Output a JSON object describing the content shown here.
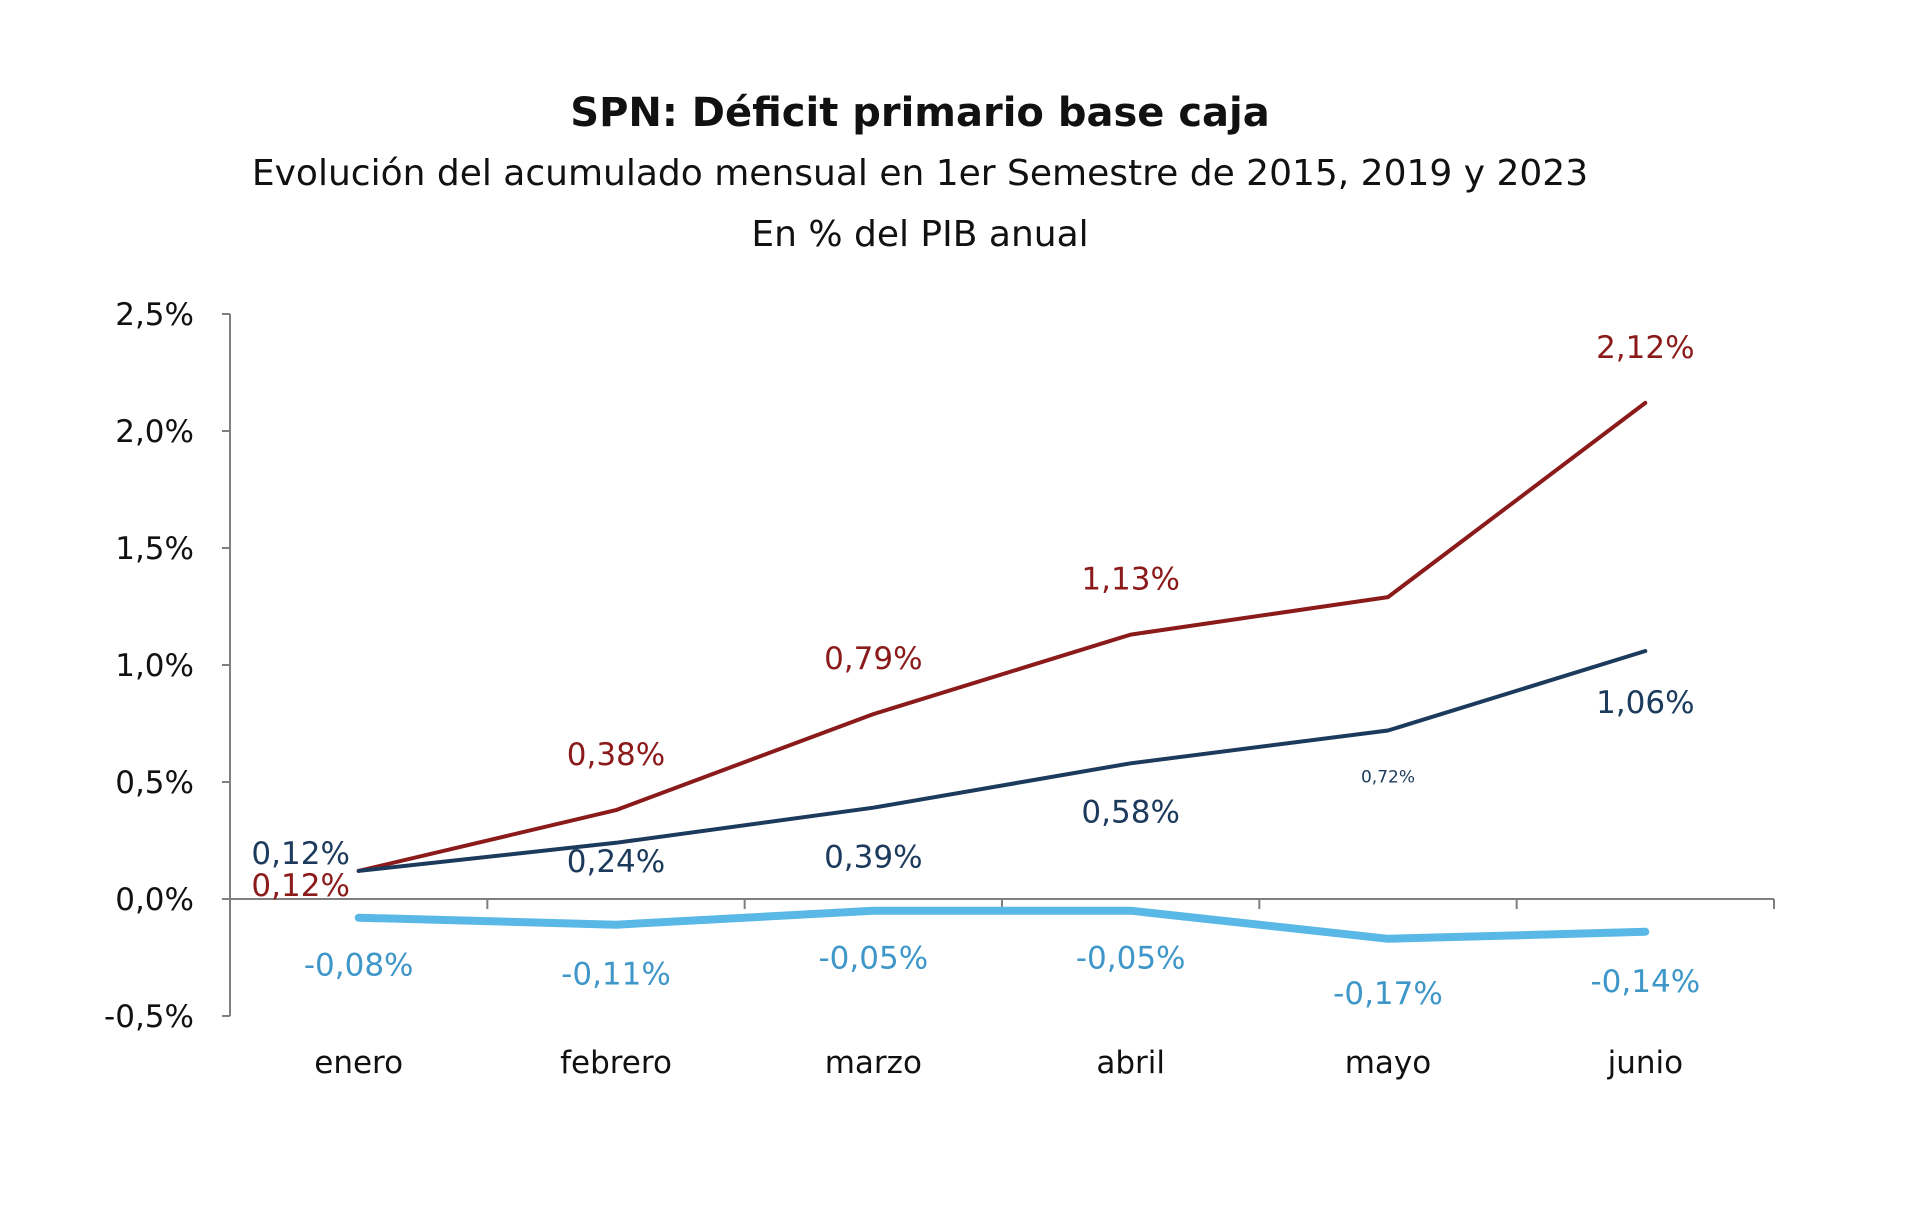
{
  "chart_data": {
    "type": "line",
    "title": "SPN: Déficit primario base caja",
    "subtitle": "Evolución del acumulado mensual en 1er Semestre de 2015, 2019 y 2023",
    "subtitle2": "En % del PIB anual",
    "categories": [
      "enero",
      "febrero",
      "marzo",
      "abril",
      "mayo",
      "junio"
    ],
    "ylim": [
      -0.5,
      2.5
    ],
    "yticks": [
      "-0,5%",
      "0,0%",
      "0,5%",
      "1,0%",
      "1,5%",
      "2,0%",
      "2,5%"
    ],
    "yticks_values": [
      -0.5,
      0.0,
      0.5,
      1.0,
      1.5,
      2.0,
      2.5
    ],
    "grid": false,
    "legend": "none",
    "series": [
      {
        "color": "#8b1a1a",
        "values": [
          0.12,
          0.38,
          0.79,
          1.13,
          1.29,
          2.12
        ],
        "labels": [
          "0,12%",
          "0,38%",
          "0,79%",
          "1,13%",
          "",
          "2,12%"
        ]
      },
      {
        "color": "#1b3a5c",
        "values": [
          0.12,
          0.24,
          0.39,
          0.58,
          0.72,
          1.06
        ],
        "labels": [
          "0,12%",
          "0,24%",
          "0,39%",
          "0,58%",
          "0,72%",
          "1,06%"
        ]
      },
      {
        "color": "#5ab8e6",
        "values": [
          -0.08,
          -0.11,
          -0.05,
          -0.05,
          -0.17,
          -0.14
        ],
        "labels": [
          "-0,08%",
          "-0,11%",
          "-0,05%",
          "-0,05%",
          "-0,17%",
          "-0,14%"
        ]
      }
    ]
  }
}
